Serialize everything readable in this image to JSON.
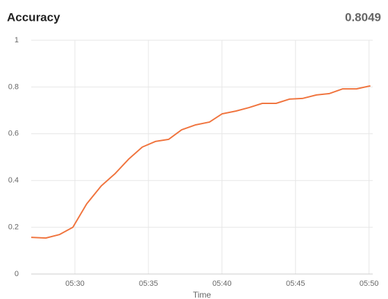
{
  "chart_data": {
    "type": "line",
    "title": "Accuracy",
    "latest": 0.8049,
    "xlabel": "Time",
    "x": [
      27.03,
      28.02,
      28.96,
      29.86,
      30.8,
      31.79,
      32.74,
      33.68,
      34.58,
      35.47,
      36.37,
      37.26,
      38.21,
      39.15,
      40.0,
      40.94,
      41.84,
      42.74,
      43.68,
      44.58,
      45.47,
      46.42,
      47.31,
      48.21,
      49.15,
      50.09
    ],
    "series": [
      {
        "name": "Accuracy",
        "color": "#f0743e",
        "values": [
          0.157,
          0.154,
          0.169,
          0.2,
          0.3,
          0.377,
          0.43,
          0.493,
          0.543,
          0.567,
          0.576,
          0.617,
          0.638,
          0.65,
          0.685,
          0.697,
          0.712,
          0.73,
          0.73,
          0.748,
          0.751,
          0.766,
          0.772,
          0.792,
          0.792,
          0.8049
        ]
      }
    ],
    "xlim": [
      27.03,
      50.25
    ],
    "xticks": [
      {
        "value": 30,
        "label": "05:30"
      },
      {
        "value": 35,
        "label": "05:35"
      },
      {
        "value": 40,
        "label": "05:40"
      },
      {
        "value": 45,
        "label": "05:45"
      },
      {
        "value": 50,
        "label": "05:50"
      }
    ],
    "ylim": [
      0,
      1
    ],
    "yticks": [
      0,
      0.2,
      0.4,
      0.6,
      0.8,
      1
    ],
    "grid": true
  }
}
